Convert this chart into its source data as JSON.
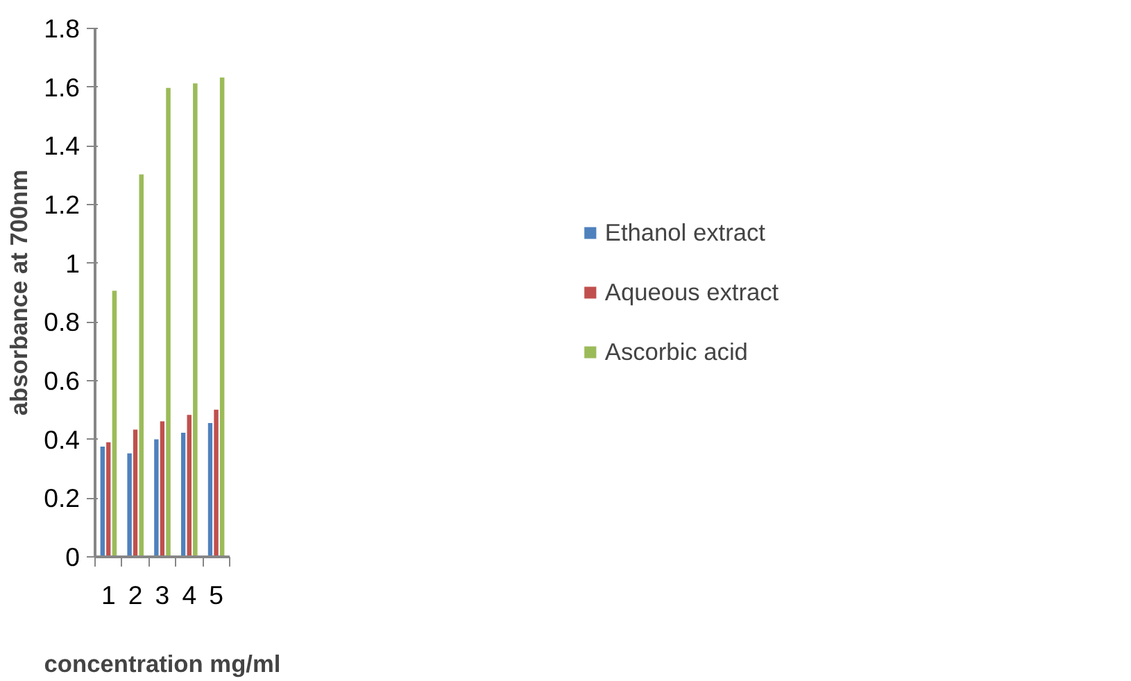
{
  "chart_data": {
    "type": "bar",
    "xlabel": "concentration mg/ml",
    "ylabel": "absorbance at 700nm",
    "categories": [
      "1",
      "2",
      "3",
      "4",
      "5"
    ],
    "series": [
      {
        "name": "Ethanol extract",
        "color": "#4f81bd",
        "values": [
          0.378,
          0.355,
          0.403,
          0.425,
          0.458
        ]
      },
      {
        "name": "Aqueous extract",
        "color": "#c0504d",
        "values": [
          0.393,
          0.436,
          0.464,
          0.486,
          0.504
        ]
      },
      {
        "name": "Ascorbic acid",
        "color": "#9bbb59",
        "values": [
          0.909,
          1.305,
          1.6,
          1.615,
          1.635
        ]
      }
    ],
    "ylim": [
      0,
      1.8
    ],
    "yticks": [
      0,
      {
        "value": 0.2,
        "label": "0.2"
      },
      {
        "value": 0.4,
        "label": "0.4"
      },
      {
        "value": 0.6,
        "label": "0.6"
      },
      {
        "value": 0.8,
        "label": "0.8"
      },
      1,
      {
        "value": 1.2,
        "label": "1.2"
      },
      {
        "value": 1.4,
        "label": "1.4"
      },
      {
        "value": 1.6,
        "label": "1.6"
      },
      {
        "value": 1.8,
        "label": "1.8"
      }
    ],
    "grid": false,
    "legend": "right"
  }
}
